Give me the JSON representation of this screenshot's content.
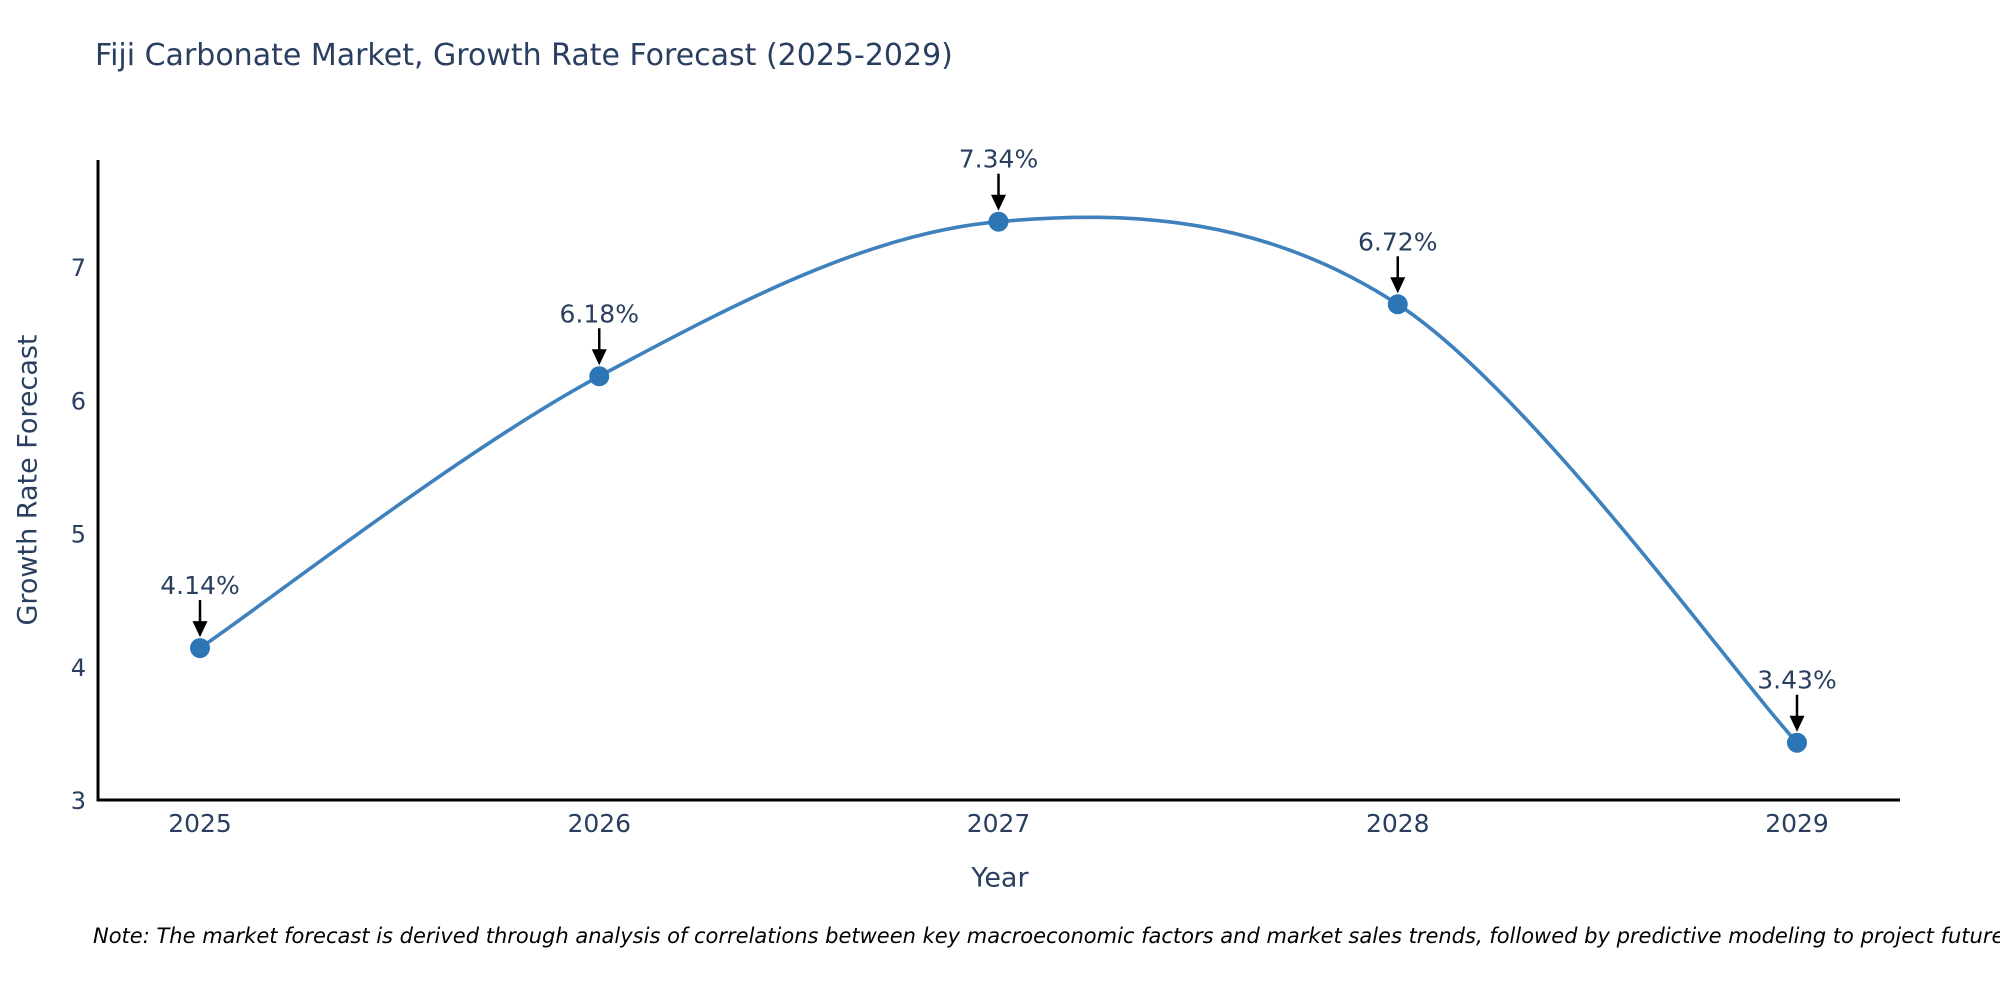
{
  "title": "Fiji Carbonate Market, Growth Rate Forecast (2025-2029)",
  "note": "Note: The market forecast is derived through analysis of correlations between key macroeconomic factors and market sales trends, followed by predictive modeling to project future sales.",
  "chart_data": {
    "type": "line",
    "title": "Fiji Carbonate Market, Growth Rate Forecast (2025-2029)",
    "xlabel": "Year",
    "ylabel": "Growth Rate Forecast",
    "x": [
      "2025",
      "2026",
      "2027",
      "2028",
      "2029"
    ],
    "values": [
      4.14,
      6.18,
      7.34,
      6.72,
      3.43
    ],
    "point_labels": [
      "4.14%",
      "6.18%",
      "7.34%",
      "6.72%",
      "3.43%"
    ],
    "yticks": [
      3,
      4,
      5,
      6,
      7
    ],
    "ylim": [
      3,
      7.8
    ],
    "line_shape": "spline",
    "grid": false,
    "legend_position": "none",
    "colors": {
      "line": "#3f81bd",
      "marker": "#2d76b5",
      "axis": "#000000",
      "tick_text": "#2a3f5f",
      "annotation_text": "#2a3f5f",
      "annotation_arrow": "#000000"
    }
  }
}
